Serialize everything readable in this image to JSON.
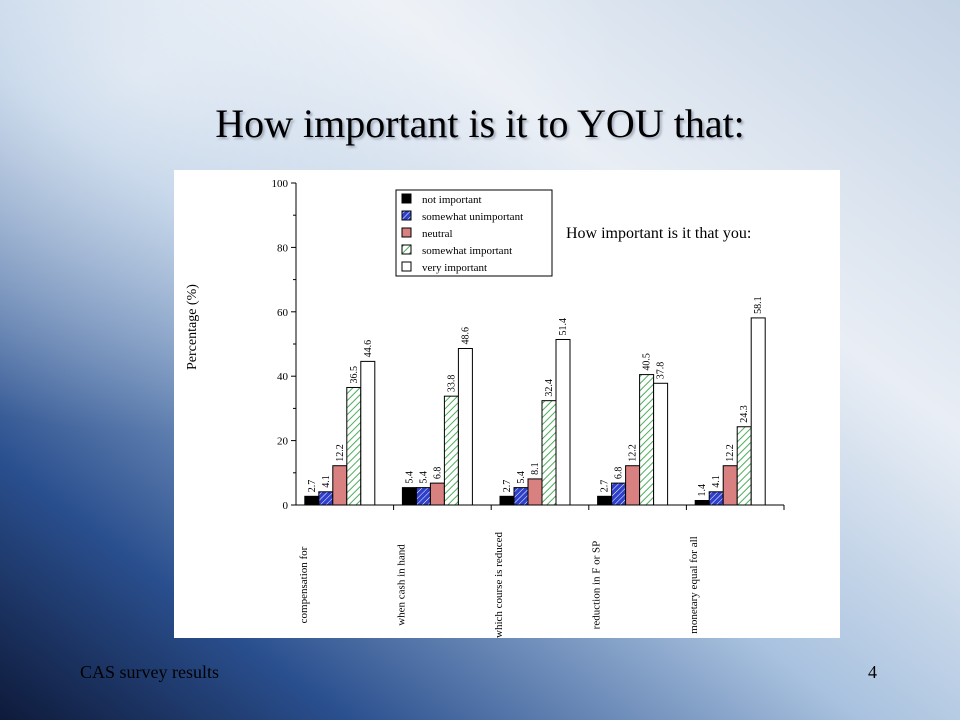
{
  "slide": {
    "title": "How important is it to YOU that:",
    "footer_left": "CAS survey results",
    "page_number": "4"
  },
  "colors": {
    "not important": "#000000",
    "somewhat unimportant": "#2e3fc9",
    "neutral": "#d98080",
    "somewhat important": "#7fd08c",
    "very important": "#ffffff"
  },
  "chart_data": {
    "type": "bar",
    "title": "How important is it that you:",
    "ylabel": "Percentage (%)",
    "xlabel": "",
    "ylim": [
      0,
      100
    ],
    "yticks": [
      0,
      20,
      40,
      60,
      80,
      100
    ],
    "legend_position": "top-center",
    "categories": [
      "compensation for",
      "when cash in hand",
      "which course is reduced",
      "reduction in F or SP",
      "monetary equal for all"
    ],
    "series": [
      {
        "name": "not important",
        "values": [
          2.7,
          5.4,
          2.7,
          2.7,
          1.4
        ]
      },
      {
        "name": "somewhat unimportant",
        "values": [
          4.1,
          5.4,
          5.4,
          6.8,
          4.1
        ]
      },
      {
        "name": "neutral",
        "values": [
          12.2,
          6.8,
          8.1,
          12.2,
          12.2
        ]
      },
      {
        "name": "somewhat important",
        "values": [
          36.5,
          33.8,
          32.4,
          40.5,
          24.3
        ]
      },
      {
        "name": "very important",
        "values": [
          44.6,
          48.6,
          51.4,
          37.8,
          58.1
        ]
      }
    ]
  }
}
